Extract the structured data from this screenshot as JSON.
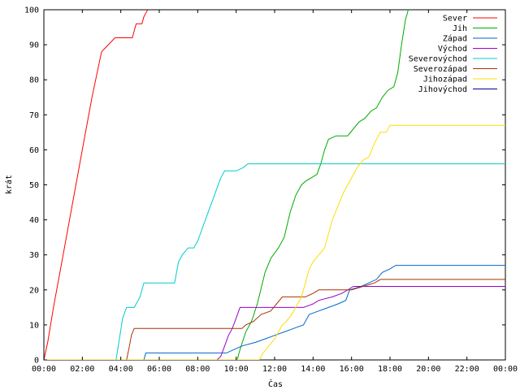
{
  "chart_data": {
    "type": "line",
    "title": "",
    "xlabel": "Čas",
    "ylabel": "krát",
    "xlim": [
      0,
      24
    ],
    "ylim": [
      0,
      100
    ],
    "x_ticks": [
      {
        "value": 0,
        "label": "00:00"
      },
      {
        "value": 2,
        "label": "02:00"
      },
      {
        "value": 4,
        "label": "04:00"
      },
      {
        "value": 6,
        "label": "06:00"
      },
      {
        "value": 8,
        "label": "08:00"
      },
      {
        "value": 10,
        "label": "10:00"
      },
      {
        "value": 12,
        "label": "12:00"
      },
      {
        "value": 14,
        "label": "14:00"
      },
      {
        "value": 16,
        "label": "16:00"
      },
      {
        "value": 18,
        "label": "18:00"
      },
      {
        "value": 20,
        "label": "20:00"
      },
      {
        "value": 22,
        "label": "22:00"
      },
      {
        "value": 24,
        "label": "00:00"
      }
    ],
    "y_ticks": [
      {
        "value": 0,
        "label": "0"
      },
      {
        "value": 10,
        "label": "10"
      },
      {
        "value": 20,
        "label": "20"
      },
      {
        "value": 30,
        "label": "30"
      },
      {
        "value": 40,
        "label": "40"
      },
      {
        "value": 50,
        "label": "50"
      },
      {
        "value": 60,
        "label": "60"
      },
      {
        "value": 70,
        "label": "70"
      },
      {
        "value": 80,
        "label": "80"
      },
      {
        "value": 90,
        "label": "90"
      },
      {
        "value": 100,
        "label": "100"
      }
    ],
    "grid": false,
    "legend_position": "top-right",
    "series": [
      {
        "name": "Sever",
        "color": "#ff0000",
        "points": [
          [
            0,
            0
          ],
          [
            0.2,
            5
          ],
          [
            0.5,
            15
          ],
          [
            1.0,
            30
          ],
          [
            1.5,
            45
          ],
          [
            2.0,
            60
          ],
          [
            2.5,
            75
          ],
          [
            3.0,
            88
          ],
          [
            3.7,
            92
          ],
          [
            3.8,
            92
          ],
          [
            4.1,
            92
          ],
          [
            4.6,
            92
          ],
          [
            4.7,
            94
          ],
          [
            4.8,
            96
          ],
          [
            5.1,
            96
          ],
          [
            5.2,
            98
          ],
          [
            5.3,
            99
          ],
          [
            5.4,
            100
          ]
        ]
      },
      {
        "name": "Jih",
        "color": "#00aa00",
        "points": [
          [
            0,
            0
          ],
          [
            10.05,
            0
          ],
          [
            10.2,
            3
          ],
          [
            10.5,
            8
          ],
          [
            10.8,
            11
          ],
          [
            11.1,
            16
          ],
          [
            11.5,
            25
          ],
          [
            11.8,
            29
          ],
          [
            12.2,
            32
          ],
          [
            12.5,
            35
          ],
          [
            12.8,
            42
          ],
          [
            13.1,
            47
          ],
          [
            13.4,
            50
          ],
          [
            13.6,
            51
          ],
          [
            13.9,
            52
          ],
          [
            14.2,
            53
          ],
          [
            14.4,
            56
          ],
          [
            14.6,
            60
          ],
          [
            14.8,
            63
          ],
          [
            15.2,
            64
          ],
          [
            15.8,
            64
          ],
          [
            16.1,
            66
          ],
          [
            16.4,
            68
          ],
          [
            16.7,
            69
          ],
          [
            17.0,
            71
          ],
          [
            17.3,
            72
          ],
          [
            17.6,
            75
          ],
          [
            17.9,
            77
          ],
          [
            18.2,
            78
          ],
          [
            18.4,
            82
          ],
          [
            18.6,
            90
          ],
          [
            18.8,
            97
          ],
          [
            18.95,
            100
          ]
        ]
      },
      {
        "name": "Západ",
        "color": "#0066cc",
        "points": [
          [
            0,
            0
          ],
          [
            5.2,
            0
          ],
          [
            5.3,
            2
          ],
          [
            6.0,
            2
          ],
          [
            8.0,
            2
          ],
          [
            9.5,
            2
          ],
          [
            9.9,
            3
          ],
          [
            10.3,
            4
          ],
          [
            11.0,
            5
          ],
          [
            11.5,
            6
          ],
          [
            12.0,
            7
          ],
          [
            12.5,
            8
          ],
          [
            13.0,
            9
          ],
          [
            13.5,
            10
          ],
          [
            13.8,
            13
          ],
          [
            14.3,
            14
          ],
          [
            14.8,
            15
          ],
          [
            15.3,
            16
          ],
          [
            15.7,
            17
          ],
          [
            15.9,
            20
          ],
          [
            16.5,
            21
          ],
          [
            16.9,
            22
          ],
          [
            17.3,
            23
          ],
          [
            17.6,
            25
          ],
          [
            18.0,
            26
          ],
          [
            18.3,
            27
          ],
          [
            24,
            27
          ]
        ]
      },
      {
        "name": "Východ",
        "color": "#9900cc",
        "points": [
          [
            0,
            0
          ],
          [
            9.0,
            0
          ],
          [
            9.2,
            1
          ],
          [
            9.4,
            4
          ],
          [
            9.6,
            7
          ],
          [
            9.8,
            9
          ],
          [
            10.0,
            12
          ],
          [
            10.2,
            15
          ],
          [
            10.8,
            15
          ],
          [
            11.5,
            15
          ],
          [
            12.5,
            15
          ],
          [
            13.5,
            15
          ],
          [
            14.0,
            16
          ],
          [
            14.3,
            17
          ],
          [
            15.0,
            18
          ],
          [
            15.5,
            19
          ],
          [
            15.8,
            20
          ],
          [
            16.1,
            21
          ],
          [
            24,
            21
          ]
        ]
      },
      {
        "name": "Severovýchod",
        "color": "#00cccc",
        "points": [
          [
            0,
            0
          ],
          [
            3.75,
            0
          ],
          [
            3.9,
            5
          ],
          [
            4.1,
            12
          ],
          [
            4.3,
            15
          ],
          [
            4.7,
            15
          ],
          [
            5.0,
            18
          ],
          [
            5.2,
            22
          ],
          [
            5.5,
            22
          ],
          [
            6.8,
            22
          ],
          [
            7.0,
            28
          ],
          [
            7.2,
            30
          ],
          [
            7.5,
            32
          ],
          [
            7.8,
            32
          ],
          [
            8.0,
            34
          ],
          [
            8.2,
            37
          ],
          [
            8.4,
            40
          ],
          [
            8.6,
            43
          ],
          [
            8.8,
            46
          ],
          [
            9.0,
            49
          ],
          [
            9.2,
            52
          ],
          [
            9.4,
            54
          ],
          [
            10.0,
            54
          ],
          [
            10.4,
            55
          ],
          [
            10.6,
            56
          ],
          [
            24,
            56
          ]
        ]
      },
      {
        "name": "Severozápad",
        "color": "#aa3300",
        "points": [
          [
            0,
            0
          ],
          [
            4.3,
            0
          ],
          [
            4.45,
            4
          ],
          [
            4.55,
            7
          ],
          [
            4.7,
            9
          ],
          [
            6.0,
            9
          ],
          [
            9.0,
            9
          ],
          [
            10.3,
            9
          ],
          [
            10.5,
            10
          ],
          [
            10.9,
            11
          ],
          [
            11.3,
            13
          ],
          [
            11.8,
            14
          ],
          [
            12.1,
            16
          ],
          [
            12.4,
            18
          ],
          [
            13.0,
            18
          ],
          [
            13.6,
            18
          ],
          [
            14.0,
            19
          ],
          [
            14.3,
            20
          ],
          [
            16.0,
            20
          ],
          [
            16.6,
            21
          ],
          [
            17.2,
            22
          ],
          [
            17.5,
            23
          ],
          [
            24,
            23
          ]
        ]
      },
      {
        "name": "Jihozápad",
        "color": "#ffdd00",
        "points": [
          [
            0,
            0
          ],
          [
            11.2,
            0
          ],
          [
            11.4,
            2
          ],
          [
            11.7,
            4
          ],
          [
            12.0,
            6
          ],
          [
            12.4,
            10
          ],
          [
            12.6,
            11
          ],
          [
            12.9,
            13
          ],
          [
            13.2,
            16
          ],
          [
            13.4,
            18
          ],
          [
            13.6,
            22
          ],
          [
            13.8,
            26
          ],
          [
            14.0,
            28
          ],
          [
            14.3,
            30
          ],
          [
            14.6,
            32
          ],
          [
            14.8,
            36
          ],
          [
            15.0,
            40
          ],
          [
            15.3,
            44
          ],
          [
            15.6,
            48
          ],
          [
            15.9,
            51
          ],
          [
            16.3,
            55
          ],
          [
            16.6,
            57
          ],
          [
            16.9,
            58
          ],
          [
            17.2,
            62
          ],
          [
            17.5,
            65
          ],
          [
            17.8,
            65
          ],
          [
            18.0,
            67
          ],
          [
            24,
            67
          ]
        ]
      },
      {
        "name": "Jihovýchod",
        "color": "#000099",
        "points": []
      }
    ]
  }
}
